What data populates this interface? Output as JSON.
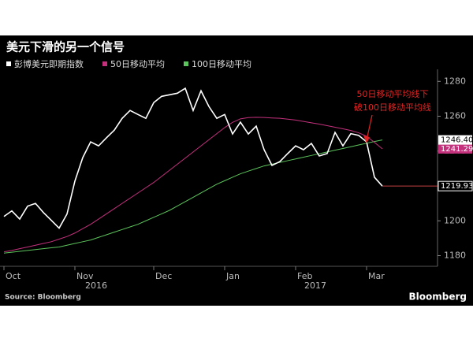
{
  "chart_data": {
    "type": "line",
    "title": "美元下滑的另一个信号",
    "categories": [
      "Oct",
      null,
      null,
      null,
      null,
      null,
      null,
      null,
      null,
      "Nov",
      null,
      null,
      null,
      null,
      null,
      null,
      null,
      null,
      null,
      "Dec",
      null,
      null,
      null,
      null,
      null,
      null,
      null,
      null,
      "Jan",
      null,
      null,
      null,
      null,
      null,
      null,
      null,
      null,
      "Feb",
      null,
      null,
      null,
      null,
      null,
      null,
      null,
      null,
      "Mar",
      null,
      null
    ],
    "year_labels": [
      "2016",
      "2017"
    ],
    "series": [
      {
        "name": "彭博美元即期指数",
        "color": "#ffffff",
        "last_value_label": "1219.93",
        "values": [
          1202.5,
          1205.7,
          1201,
          1208.4,
          1210,
          1204.8,
          1200.3,
          1195.8,
          1203.9,
          1222.8,
          1236.3,
          1245.3,
          1243,
          1247.6,
          1252,
          1258.8,
          1263.3,
          1261,
          1258.8,
          1267.8,
          1271.4,
          1272.3,
          1273.2,
          1276,
          1263.3,
          1274.6,
          1265.6,
          1258.8,
          1261,
          1249.8,
          1256.6,
          1249.8,
          1254.3,
          1240.8,
          1231.8,
          1234,
          1238.6,
          1243,
          1240.8,
          1244.4,
          1237.2,
          1238.6,
          1250.7,
          1243,
          1250,
          1249,
          1245.3,
          1225,
          1219.93
        ]
      },
      {
        "name": "50日移动平均",
        "color": "#c4307c",
        "last_value_label": "1241.29",
        "values": [
          1182.2,
          1183,
          1184,
          1185,
          1186,
          1187,
          1188,
          1189.5,
          1191,
          1193,
          1195.5,
          1198,
          1201,
          1204,
          1207,
          1210,
          1213,
          1216,
          1219,
          1222,
          1225.5,
          1229,
          1232.5,
          1236,
          1239.5,
          1243,
          1246.5,
          1250,
          1253.5,
          1256.5,
          1258.5,
          1259.2,
          1259.4,
          1259.3,
          1259,
          1258.8,
          1258.3,
          1257.8,
          1257,
          1256.2,
          1255.5,
          1254.6,
          1253.7,
          1252.8,
          1251.8,
          1250.5,
          1248.5,
          1245,
          1241.29
        ]
      },
      {
        "name": "100日移动平均",
        "color": "#5cc45c",
        "last_value_label": "1246.40",
        "values": [
          1181.5,
          1182,
          1182.5,
          1183,
          1183.5,
          1184,
          1184.5,
          1185,
          1186,
          1187,
          1188,
          1189,
          1190.5,
          1192,
          1193.5,
          1195,
          1196.5,
          1198,
          1200,
          1202,
          1204,
          1206,
          1208.5,
          1211,
          1213.5,
          1216,
          1218.5,
          1221,
          1223,
          1225,
          1227,
          1228.5,
          1230,
          1231.5,
          1232.5,
          1233.5,
          1234.5,
          1235.5,
          1236.5,
          1237.5,
          1238.5,
          1239.5,
          1240.5,
          1241.5,
          1242.5,
          1243.5,
          1244.5,
          1245.5,
          1246.4
        ]
      }
    ],
    "ylim": [
      1173,
      1286
    ],
    "yticks": [
      1180,
      1200,
      1220,
      1240,
      1260,
      1280
    ],
    "annotation": [
      "50日移动平均线下",
      "破100日移动平均线"
    ],
    "annotation_color": "#e02424",
    "source": "Source: Bloomberg",
    "logo": "Bloomberg"
  }
}
